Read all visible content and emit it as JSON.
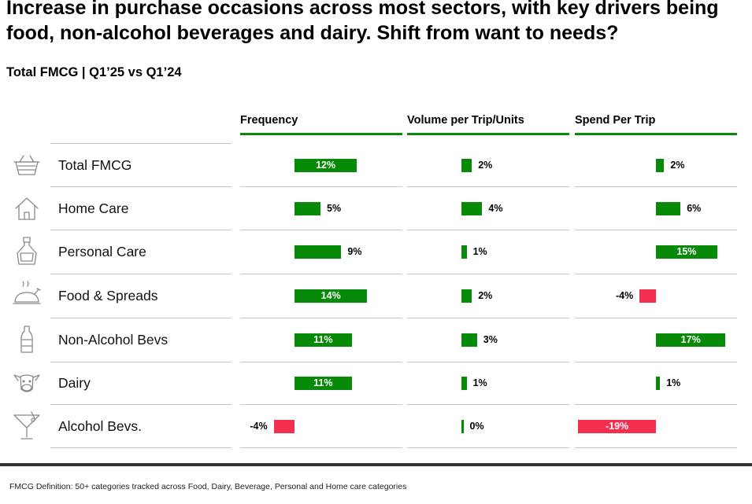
{
  "title": "Increase in purchase occasions across most sectors, with key drivers being food, non-alcohol beverages and dairy. Shift from want to needs?",
  "subtitle": "Total FMCG | Q1’25 vs Q1’24",
  "footnote": "FMCG Definition: 50+ categories tracked across Food, Dairy, Beverage, Personal and Home care categories",
  "colors": {
    "positive": "#078a07",
    "negative": "#f22f4f",
    "header_rule": "#0a8a0a"
  },
  "chart_data": {
    "type": "bar",
    "orientation": "horizontal",
    "title": "Total FMCG | Q1’25 vs Q1’24",
    "categories": [
      "Total FMCG",
      "Home Care",
      "Personal Care",
      "Food & Spreads",
      "Non-Alcohol Bevs",
      "Dairy",
      "Alcohol Bevs."
    ],
    "icons": [
      "basket-icon",
      "house-icon",
      "perfume-bottle-icon",
      "roast-chicken-icon",
      "soda-bottle-icon",
      "cow-icon",
      "cocktail-glass-icon"
    ],
    "unit": "%",
    "series": [
      {
        "name": "Frequency",
        "values": [
          12,
          5,
          9,
          14,
          11,
          11,
          -4
        ],
        "labels": [
          "12%",
          "5%",
          "9%",
          "14%",
          "11%",
          "11%",
          "-4%"
        ]
      },
      {
        "name": "Volume per Trip/Units",
        "values": [
          2,
          4,
          1,
          2,
          3,
          1,
          0
        ],
        "labels": [
          "2%",
          "4%",
          "1%",
          "2%",
          "3%",
          "1%",
          "0%"
        ]
      },
      {
        "name": "Spend Per Trip",
        "values": [
          2,
          6,
          15,
          -4,
          17,
          1,
          -19
        ],
        "labels": [
          "2%",
          "6%",
          "15%",
          "-4%",
          "17%",
          "1%",
          "-19%"
        ]
      }
    ]
  }
}
